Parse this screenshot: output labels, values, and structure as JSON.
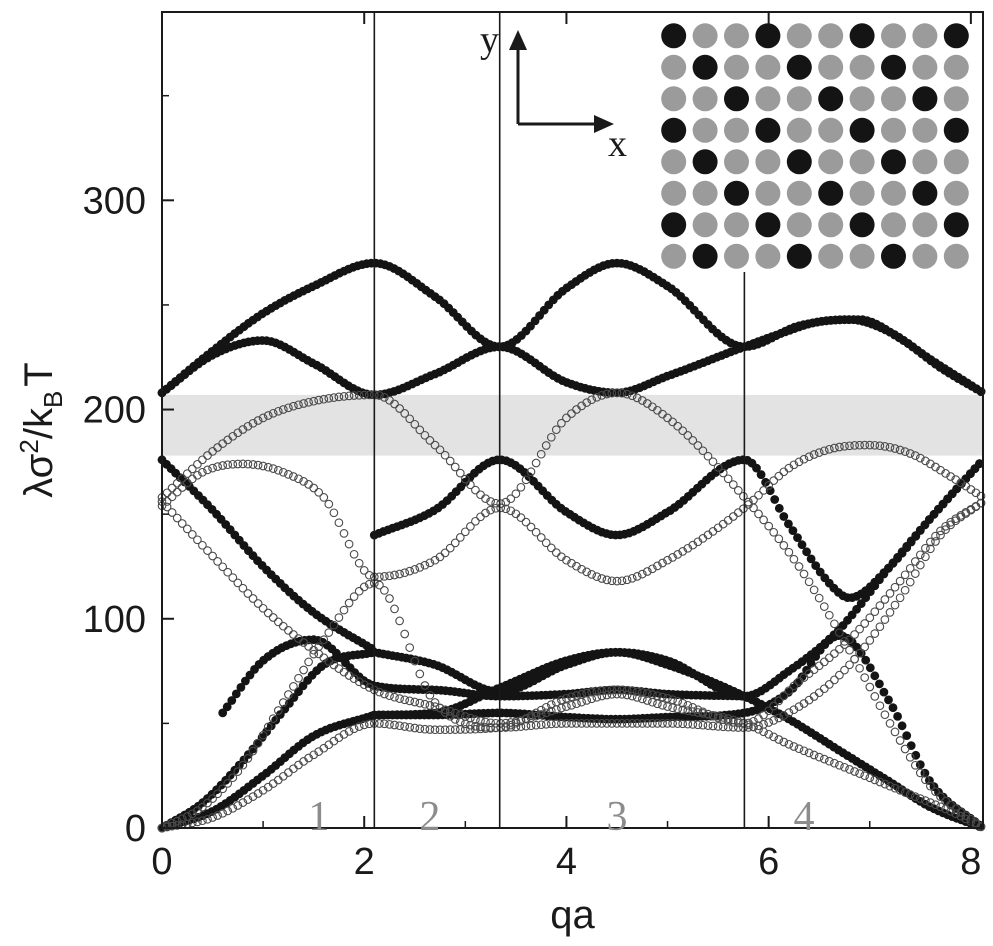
{
  "chart_data": {
    "type": "scatter",
    "title": "",
    "xlabel": "qa",
    "ylabel_parts": {
      "a": "λσ",
      "sup": "2",
      "b": "/k",
      "sub": "B",
      "c": "T"
    },
    "xlim": [
      0,
      8.12
    ],
    "ylim": [
      0,
      390
    ],
    "xticks": [
      0,
      2,
      4,
      6,
      8
    ],
    "yticks": [
      0,
      100,
      200,
      300
    ],
    "grid": false,
    "legend": "none",
    "band_gap": [
      178,
      207
    ],
    "region_boundaries": [
      2.1,
      3.34,
      5.76
    ],
    "region_labels": [
      {
        "text": "1",
        "x": 1.55
      },
      {
        "text": "2",
        "x": 2.65
      },
      {
        "text": "3",
        "x": 4.5
      },
      {
        "text": "4",
        "x": 6.35
      }
    ],
    "axis_directions": {
      "y": "y",
      "x": "x"
    },
    "series": [
      {
        "style": "filled",
        "x": [
          0,
          0.5,
          1.0,
          1.5,
          2.1,
          2.7,
          3.34,
          4.0,
          4.5,
          5.0,
          5.76,
          6.3,
          6.8,
          7.2,
          7.6,
          8.12
        ],
        "y": [
          208,
          228,
          246,
          259,
          270,
          254,
          230,
          258,
          270,
          259,
          230,
          240,
          243,
          237,
          224,
          208
        ]
      },
      {
        "style": "filled",
        "x": [
          0,
          0.5,
          1.0,
          1.5,
          2.1,
          2.7,
          3.34,
          4.0,
          4.5,
          5.0,
          5.76,
          6.1,
          6.5,
          6.9,
          7.3,
          7.7,
          8.12
        ],
        "y": [
          208,
          226,
          233,
          222,
          207,
          217,
          230,
          213,
          208,
          216,
          230,
          236,
          242,
          243,
          234,
          220,
          208
        ]
      },
      {
        "style": "filled",
        "x": [
          0,
          0.5,
          1.0,
          1.5,
          2.1
        ],
        "y": [
          176,
          152,
          125,
          103,
          85
        ]
      },
      {
        "style": "filled",
        "x": [
          2.1,
          2.7,
          3.34,
          4.0,
          4.5,
          5.0,
          5.76,
          6.2,
          6.6,
          6.8,
          7.2,
          7.6,
          8.12
        ],
        "y": [
          140,
          152,
          176,
          151,
          140,
          151,
          176,
          145,
          117,
          110,
          125,
          148,
          176
        ]
      },
      {
        "style": "filled",
        "x": [
          0,
          0.4,
          0.8,
          1.2,
          1.6,
          2.1
        ],
        "y": [
          0,
          12,
          32,
          56,
          78,
          84
        ]
      },
      {
        "style": "filled",
        "x": [
          2.1,
          2.7,
          3.34,
          4.0,
          4.5,
          5.0,
          5.76,
          6.2,
          6.7,
          7.2,
          7.6,
          8.12
        ],
        "y": [
          84,
          78,
          65,
          78,
          84,
          78,
          63,
          52,
          37,
          22,
          10,
          0
        ]
      },
      {
        "style": "filled",
        "x": [
          0,
          0.5,
          1.0,
          1.5,
          2.1
        ],
        "y": [
          0,
          8,
          25,
          44,
          54
        ]
      },
      {
        "style": "filled",
        "x": [
          2.1,
          2.7,
          3.34,
          4.0,
          4.5,
          5.0,
          5.76,
          6.2,
          6.7,
          7.2,
          7.6,
          8.12
        ],
        "y": [
          54,
          55,
          67,
          80,
          84,
          80,
          63,
          75,
          95,
          125,
          148,
          176
        ]
      },
      {
        "style": "filled",
        "x": [
          0.6,
          1.0,
          1.5,
          2.1,
          2.7,
          3.34,
          4.0,
          4.5,
          5.0,
          5.76
        ],
        "y": [
          55,
          80,
          90,
          68,
          66,
          63,
          64,
          66,
          64,
          63
        ]
      },
      {
        "style": "filled",
        "x": [
          2.1,
          2.7,
          3.34,
          4.0,
          4.5,
          5.0,
          5.76,
          6.2,
          6.7,
          7.2,
          7.6,
          8.12
        ],
        "y": [
          54,
          54,
          55,
          53,
          52,
          53,
          55,
          65,
          92,
          60,
          22,
          0
        ]
      },
      {
        "style": "open",
        "x": [
          0,
          0.5,
          1.0,
          1.5,
          2.1,
          2.7,
          3.34,
          4.0,
          4.5,
          5.0,
          5.76,
          6.3,
          6.8,
          7.2,
          7.6,
          8.12
        ],
        "y": [
          158,
          180,
          196,
          204,
          207,
          183,
          155,
          196,
          208,
          196,
          158,
          125,
          85,
          50,
          20,
          0
        ]
      },
      {
        "style": "open",
        "x": [
          0,
          0.4,
          0.8,
          1.2,
          1.6,
          2.1,
          2.7,
          3.34,
          4.0,
          4.5,
          5.0,
          5.76,
          6.2,
          6.6,
          7.0,
          7.4,
          7.8,
          8.12
        ],
        "y": [
          154,
          170,
          174,
          170,
          158,
          120,
          128,
          153,
          128,
          118,
          128,
          153,
          172,
          181,
          183,
          179,
          168,
          158
        ]
      },
      {
        "style": "open",
        "x": [
          0,
          0.5,
          1.0,
          1.5,
          2.1,
          2.7,
          3.34,
          4.0,
          4.5,
          5.0,
          5.76,
          6.2,
          6.8,
          7.4,
          7.8,
          8.12
        ],
        "y": [
          156,
          130,
          105,
          85,
          66,
          58,
          50,
          58,
          64,
          58,
          50,
          40,
          28,
          16,
          8,
          0
        ]
      },
      {
        "style": "open",
        "x": [
          0,
          0.4,
          0.8,
          1.2,
          1.6,
          2.1,
          2.7,
          3.34,
          4.0,
          4.5,
          5.0,
          5.76,
          6.3,
          6.8,
          7.3,
          7.7,
          8.12
        ],
        "y": [
          0,
          10,
          30,
          60,
          90,
          117,
          60,
          48,
          50,
          50,
          50,
          48,
          58,
          78,
          110,
          140,
          156
        ]
      },
      {
        "style": "open",
        "x": [
          0,
          0.5,
          1.0,
          1.5,
          2.1,
          2.7,
          3.34,
          4.0,
          4.5,
          5.0,
          5.76,
          6.3,
          6.8,
          7.3,
          7.7,
          8.12
        ],
        "y": [
          0,
          5,
          18,
          35,
          50,
          47,
          48,
          62,
          66,
          62,
          50,
          70,
          90,
          118,
          142,
          156
        ]
      }
    ]
  }
}
